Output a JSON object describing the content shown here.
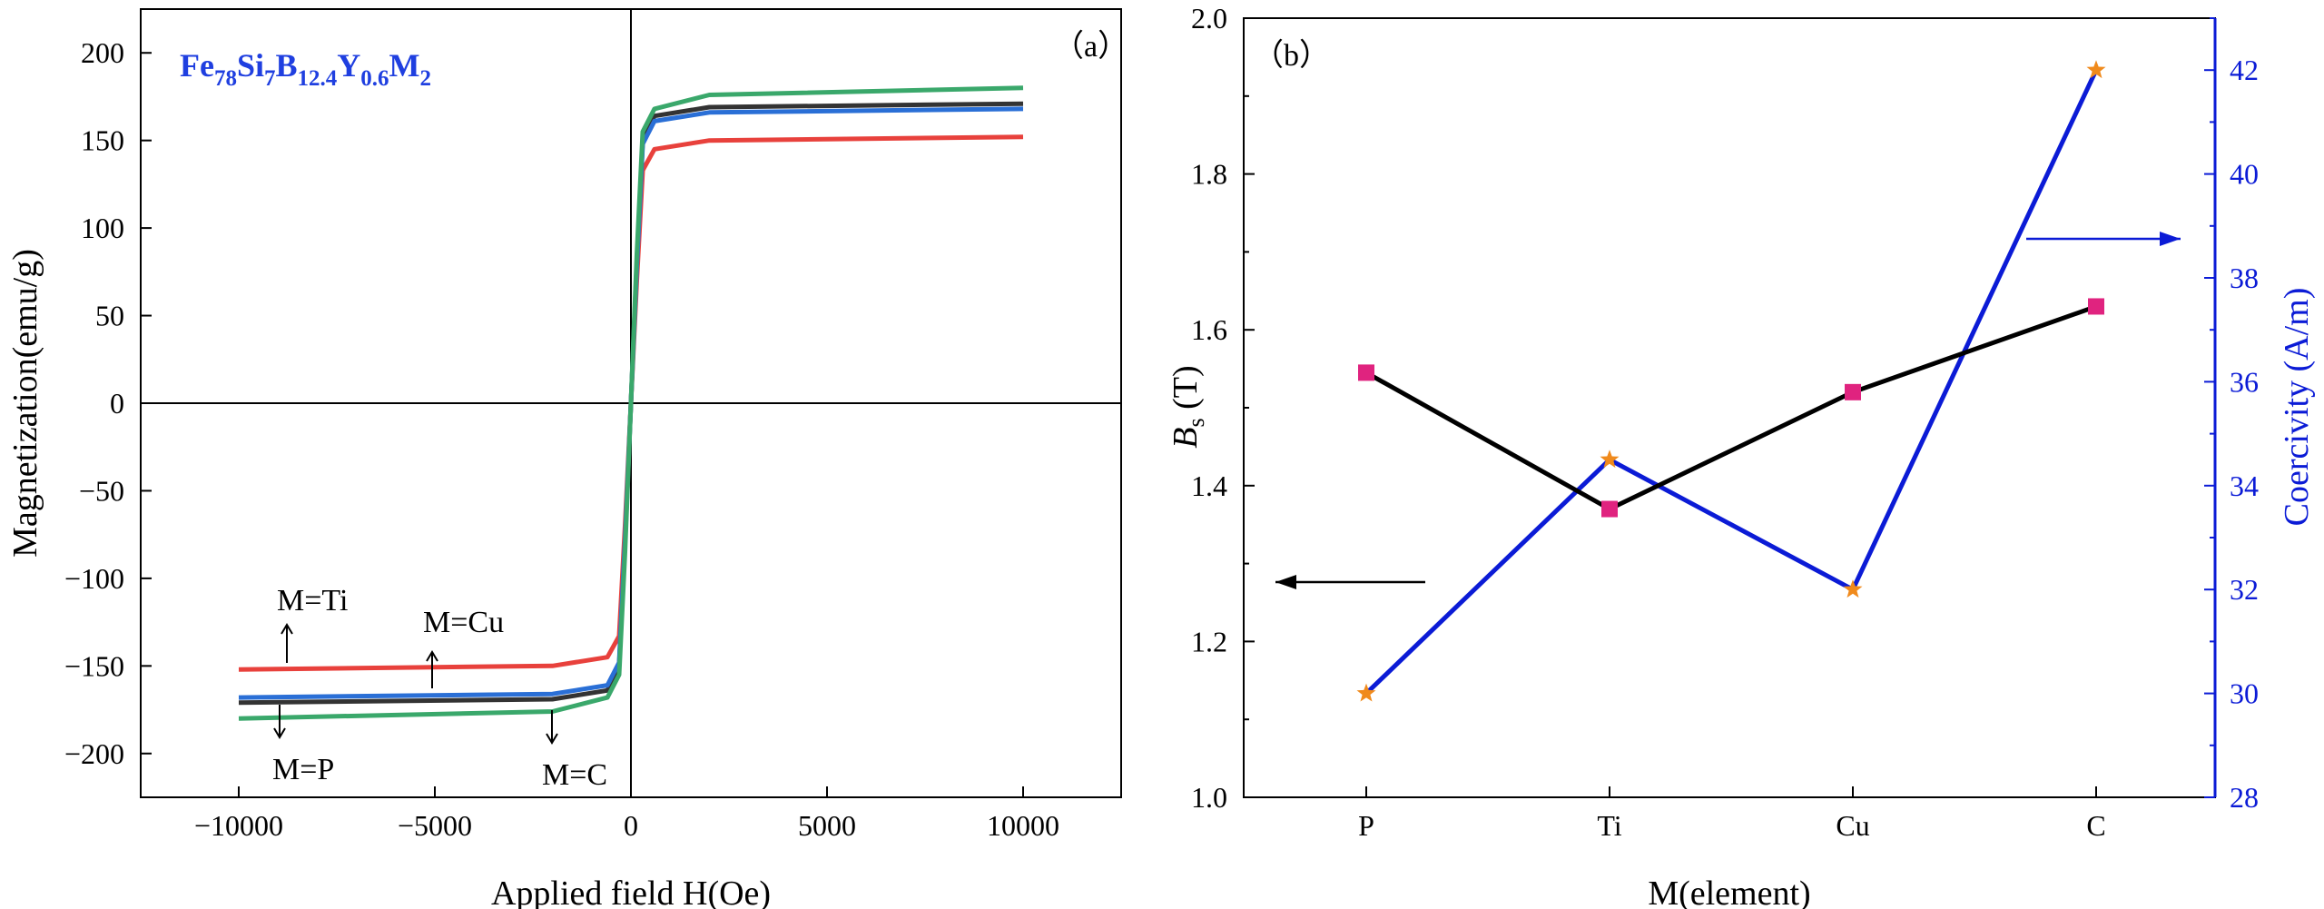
{
  "chart_data": [
    {
      "panel": "(a)",
      "type": "line",
      "title": "Fe78Si7B12.4Y0.6M2",
      "xlabel": "Applied field H(Oe)",
      "ylabel": "Magnetization(emu/g)",
      "xlim": [
        -12500,
        12500
      ],
      "ylim": [
        -225,
        225
      ],
      "xticks": [
        "−10000",
        "−5000",
        "0",
        "5000",
        "10000"
      ],
      "yticks": [
        "200",
        "150",
        "100",
        "50",
        "0",
        "−50",
        "−100",
        "−150",
        "−200"
      ],
      "series": [
        {
          "key": "P",
          "color": "#333333",
          "Ms": 171,
          "x": [
            -10000,
            -2000,
            -600,
            -300,
            -150,
            0,
            150,
            300,
            600,
            2000,
            10000
          ],
          "values": [
            -171,
            -169,
            -164,
            -150,
            -80,
            0,
            80,
            150,
            164,
            169,
            171
          ]
        },
        {
          "key": "Ti",
          "color": "#e8413c",
          "Ms": 152,
          "x": [
            -10000,
            -2000,
            -600,
            -300,
            -150,
            0,
            150,
            300,
            600,
            2000,
            10000
          ],
          "values": [
            -152,
            -150,
            -145,
            -133,
            -70,
            0,
            70,
            133,
            145,
            150,
            152
          ]
        },
        {
          "key": "Cu",
          "color": "#2a6fd6",
          "Ms": 168,
          "x": [
            -10000,
            -2000,
            -600,
            -300,
            -150,
            0,
            150,
            300,
            600,
            2000,
            10000
          ],
          "values": [
            -168,
            -166,
            -161,
            -148,
            -78,
            0,
            78,
            148,
            161,
            166,
            168
          ]
        },
        {
          "key": "C",
          "color": "#3aa86b",
          "Ms": 180,
          "x": [
            -10000,
            -2000,
            -600,
            -300,
            -150,
            0,
            150,
            300,
            600,
            2000,
            10000
          ],
          "values": [
            -180,
            -176,
            -168,
            -155,
            -85,
            0,
            85,
            155,
            168,
            176,
            180
          ]
        }
      ],
      "annotations": [
        "M=Ti",
        "M=Cu",
        "M=P",
        "M=C"
      ]
    },
    {
      "panel": "(b)",
      "type": "line",
      "categories": [
        "P",
        "Ti",
        "Cu",
        "C"
      ],
      "xlabel": "M(element)",
      "ylabel_left": "Bs (T)",
      "ylabel_right": "Coercivity (A/m)",
      "ylim_left": [
        1.0,
        2.0
      ],
      "ylim_right": [
        28,
        43
      ],
      "yticks_left": [
        "1.0",
        "1.2",
        "1.4",
        "1.6",
        "1.8",
        "2.0"
      ],
      "yticks_right": [
        "28",
        "30",
        "32",
        "34",
        "36",
        "38",
        "40",
        "42"
      ],
      "series": [
        {
          "axis": "left",
          "color": "#000000",
          "marker": "square",
          "marker_color": "#e0237f",
          "values": [
            1.545,
            1.37,
            1.52,
            1.63
          ]
        },
        {
          "axis": "right",
          "color": "#0b1bd6",
          "marker": "star",
          "marker_color": "#f08a1c",
          "values": [
            30.0,
            34.5,
            32.0,
            42.0
          ]
        }
      ]
    }
  ],
  "panel_a": {
    "label": "（a）",
    "formula": {
      "fe": "Fe",
      "fe_sub": "78",
      "si": "Si",
      "si_sub": "7",
      "b": "B",
      "b_sub": "12.4",
      "y": "Y",
      "y_sub": "0.6",
      "m": "M",
      "m_sub": "2"
    },
    "xlabel": "Applied field H(Oe)",
    "ylabel": "Magnetization(emu/g)",
    "xticks": [
      "−10000",
      "−5000",
      "0",
      "5000",
      "10000"
    ],
    "yticks": [
      "200",
      "150",
      "100",
      "50",
      "0",
      "−50",
      "−100",
      "−150",
      "−200"
    ],
    "annotations": {
      "ti": "M=Ti",
      "cu": "M=Cu",
      "p": "M=P",
      "c": "M=C"
    }
  },
  "panel_b": {
    "label": "（b）",
    "xlabel": "M(element)",
    "ylabel_left_main": "B",
    "ylabel_left_sub": "s",
    "ylabel_left_unit": " (T)",
    "ylabel_right": "Coercivity (A/m)",
    "categories": [
      "P",
      "Ti",
      "Cu",
      "C"
    ],
    "yticks_left": [
      "1.0",
      "1.2",
      "1.4",
      "1.6",
      "1.8",
      "2.0"
    ],
    "yticks_right": [
      "28",
      "30",
      "32",
      "34",
      "36",
      "38",
      "40",
      "42"
    ]
  },
  "colors": {
    "formula": "#1f3fe0",
    "bs_line": "#000000",
    "bs_marker": "#e0237f",
    "hc_line": "#0b1bd6",
    "hc_marker": "#f08a1c",
    "right_axis": "#0b1bd6"
  }
}
